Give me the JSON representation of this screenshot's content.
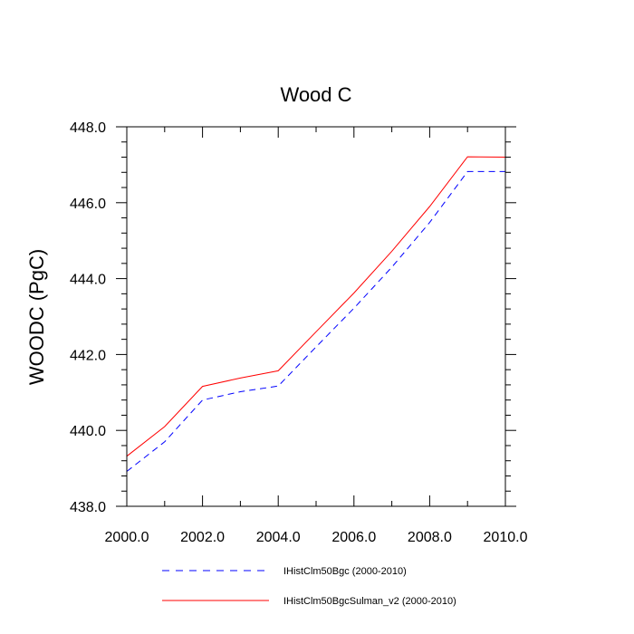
{
  "chart_data": {
    "type": "line",
    "title": "Wood C",
    "xlabel": "",
    "ylabel": "WOODC  (PgC)",
    "xlim": [
      2000,
      2010
    ],
    "ylim": [
      438,
      448
    ],
    "x_ticks": [
      2000,
      2002,
      2004,
      2006,
      2008,
      2010
    ],
    "x_tick_labels": [
      "2000.0",
      "2002.0",
      "2004.0",
      "2006.0",
      "2008.0",
      "2010.0"
    ],
    "y_ticks": [
      438,
      440,
      442,
      444,
      446,
      448
    ],
    "y_tick_labels": [
      "438.0",
      "440.0",
      "442.0",
      "444.0",
      "446.0",
      "448.0"
    ],
    "grid": false,
    "legend_position": "bottom",
    "x": [
      2000,
      2001,
      2002,
      2003,
      2004,
      2005,
      2006,
      2007,
      2008,
      2009,
      2010
    ],
    "series": [
      {
        "name": "IHistClm50Bgc (2000-2010)",
        "color": "#0000ff",
        "dash": "dashed",
        "values": [
          438.92,
          439.7,
          440.8,
          441.02,
          441.17,
          442.2,
          443.22,
          444.3,
          445.48,
          446.82,
          446.82
        ]
      },
      {
        "name": "IHistClm50BgcSulman_v2 (2000-2010)",
        "color": "#ff0000",
        "dash": "solid",
        "values": [
          439.32,
          440.1,
          441.16,
          441.38,
          441.57,
          442.6,
          443.62,
          444.72,
          445.9,
          447.21,
          447.2
        ]
      }
    ]
  }
}
